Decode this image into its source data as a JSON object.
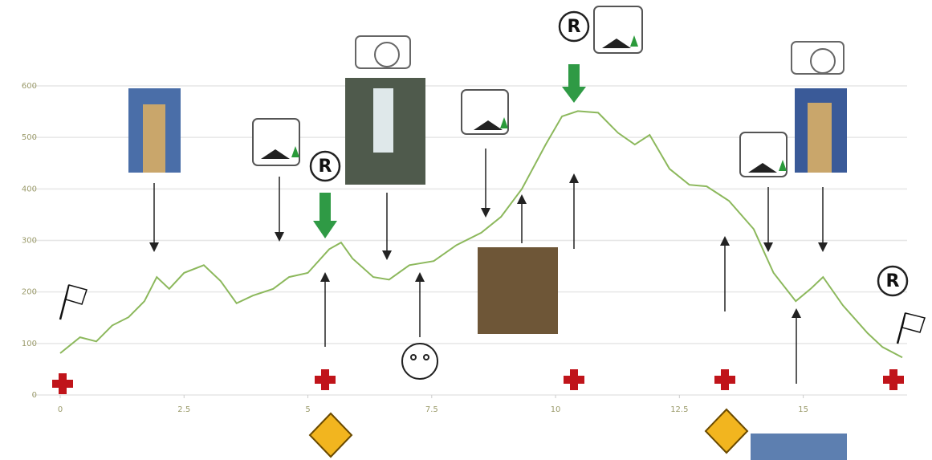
{
  "chart_data": {
    "type": "line",
    "x": [
      0,
      0.4,
      0.73,
      1.05,
      1.38,
      1.7,
      1.95,
      2.2,
      2.5,
      2.9,
      3.24,
      3.56,
      3.89,
      4.3,
      4.62,
      5.0,
      5.43,
      5.67,
      5.9,
      6.32,
      6.64,
      7.05,
      7.54,
      8.0,
      8.5,
      8.9,
      9.32,
      9.8,
      10.13,
      10.45,
      10.86,
      11.26,
      11.6,
      11.9,
      12.3,
      12.7,
      13.05,
      13.5,
      14.0,
      14.4,
      14.85,
      15.15,
      15.4,
      15.8,
      16.3,
      16.6,
      17.0
    ],
    "values": [
      81,
      112,
      104,
      135,
      151,
      182,
      229,
      206,
      237,
      252,
      221,
      178,
      193,
      206,
      229,
      237,
      283,
      296,
      265,
      229,
      224,
      252,
      260,
      291,
      315,
      346,
      400,
      486,
      541,
      551,
      548,
      509,
      486,
      505,
      439,
      408,
      405,
      377,
      322,
      237,
      182,
      206,
      229,
      174,
      120,
      93,
      73
    ],
    "color": "#8cb85c",
    "xlim": [
      0,
      17.0
    ],
    "xticks": [
      0,
      2.5,
      5,
      7.5,
      10,
      12.5,
      15
    ],
    "ylim": [
      0,
      600
    ],
    "yticks": [
      0,
      100,
      200,
      300,
      400,
      500,
      600
    ],
    "grid": true,
    "annotations": [
      "R",
      "R",
      "R"
    ]
  }
}
